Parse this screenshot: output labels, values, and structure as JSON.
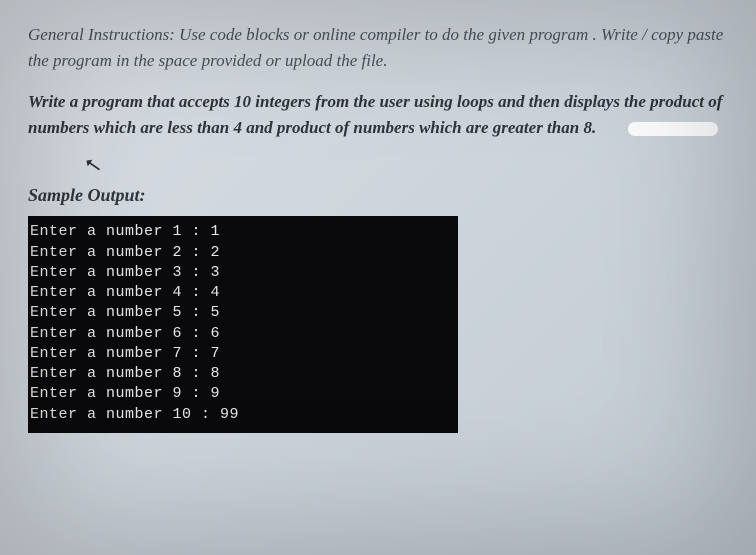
{
  "instructions": "General Instructions: Use code blocks or online compiler to do the given program . Write / copy paste the program in the space provided or upload the file.",
  "prompt": {
    "pre": "Write a program that accepts 10 integers from the user ",
    "b1": "using loops",
    "mid": "  and then  displays the product of numbers which are less than 4 and product of numbers which are greater than 8."
  },
  "sample_label": "Sample Output:",
  "terminal": {
    "background": "#0a0a0c",
    "text_color": "#e6e6e6",
    "font": "Courier New",
    "rows": [
      "Enter a number 1 : 1",
      "Enter a number 2 : 2",
      "Enter a number 3 : 3",
      "Enter a number 4 : 4",
      "Enter a number 5 : 5",
      "Enter a number 6 : 6",
      "Enter a number 7 : 7",
      "Enter a number 8 : 8",
      "Enter a number 9 : 9",
      "Enter a number 10 : 99"
    ]
  },
  "cursor_glyph": "↖"
}
